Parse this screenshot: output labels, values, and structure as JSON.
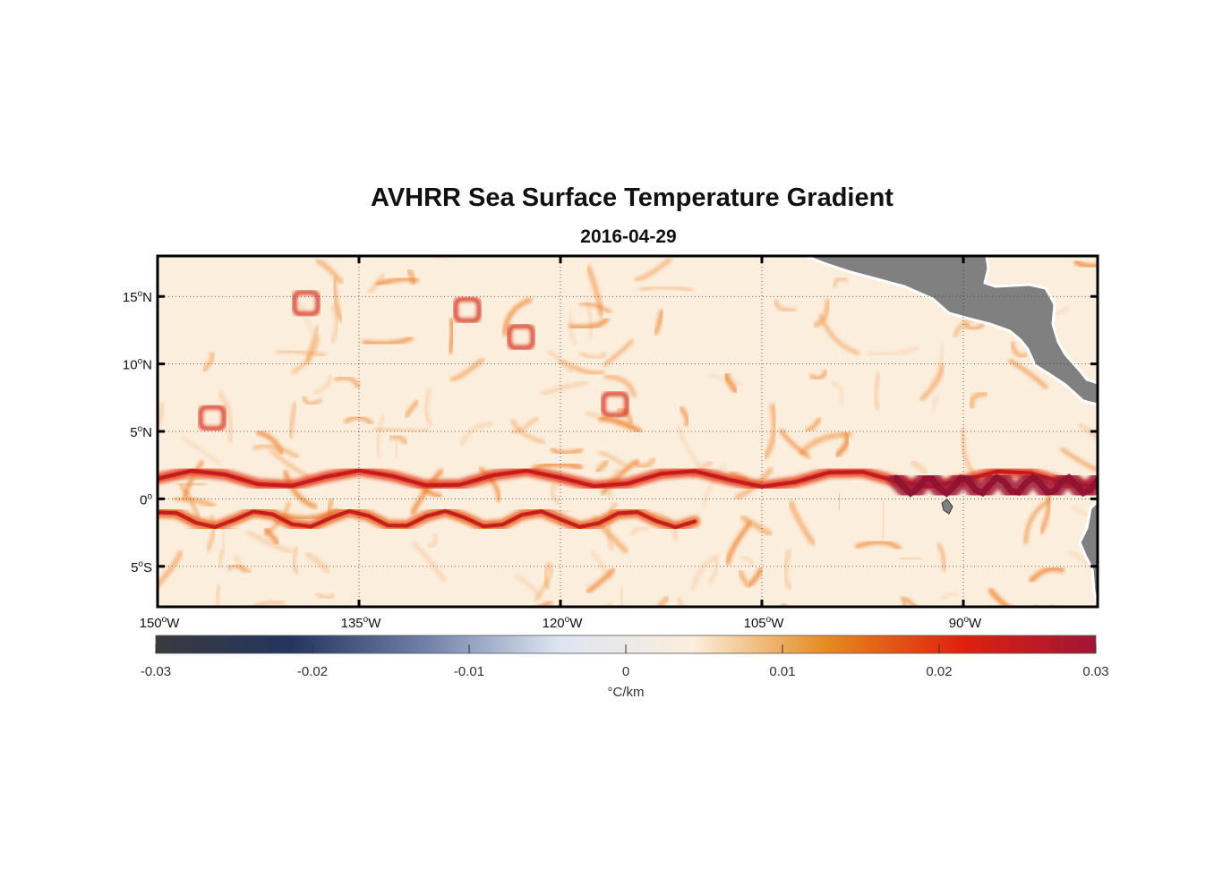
{
  "title": "AVHRR Sea Surface Temperature Gradient",
  "subtitle": "2016-04-29",
  "map": {
    "lon_range": [
      -150,
      -80
    ],
    "lat_range": [
      -8,
      18
    ],
    "lon_ticks": [
      {
        "value": -150,
        "num": "150",
        "hemi": "W"
      },
      {
        "value": -135,
        "num": "135",
        "hemi": "W"
      },
      {
        "value": -120,
        "num": "120",
        "hemi": "W"
      },
      {
        "value": -105,
        "num": "105",
        "hemi": "W"
      },
      {
        "value": -90,
        "num": "90",
        "hemi": "W"
      }
    ],
    "lat_ticks": [
      {
        "value": 15,
        "num": "15",
        "hemi": "N"
      },
      {
        "value": 10,
        "num": "10",
        "hemi": "N"
      },
      {
        "value": 5,
        "num": "5",
        "hemi": "N"
      },
      {
        "value": 0,
        "num": "0",
        "hemi": ""
      },
      {
        "value": -5,
        "num": "5",
        "hemi": "S"
      }
    ],
    "grid": "dotted",
    "land_color": "#808080",
    "ocean_base_color": "#fbeedd"
  },
  "colorbar": {
    "min": -0.03,
    "max": 0.03,
    "ticks": [
      "-0.03",
      "-0.02",
      "-0.01",
      "0",
      "0.01",
      "0.02",
      "0.03"
    ],
    "unit_label": "°C/km",
    "stops": [
      "#3a3a3e",
      "#23355f",
      "#6f7fa6",
      "#dde5f2",
      "#fbeedd",
      "#e58a1e",
      "#e0210e",
      "#a01536"
    ]
  },
  "chart_data": {
    "type": "heatmap",
    "title": "AVHRR Sea Surface Temperature Gradient",
    "subtitle": "2016-04-29",
    "variable": "sea surface temperature gradient",
    "unit": "°C/km",
    "color_range": [
      -0.03,
      0.03
    ],
    "lon_range": [
      -150,
      -80
    ],
    "lat_range": [
      -8,
      18
    ],
    "features": [
      {
        "name": "northern equatorial front",
        "lat_center": 1.5,
        "lon_span": [
          -150,
          -80
        ],
        "approx_gradient": 0.02
      },
      {
        "name": "southern equatorial front",
        "lat_center": -1.5,
        "lon_span": [
          -150,
          -110
        ],
        "approx_gradient": 0.015
      },
      {
        "name": "eastern cold tongue front",
        "lat_center": 1,
        "lon_span": [
          -95,
          -80
        ],
        "approx_gradient": 0.03
      }
    ]
  }
}
